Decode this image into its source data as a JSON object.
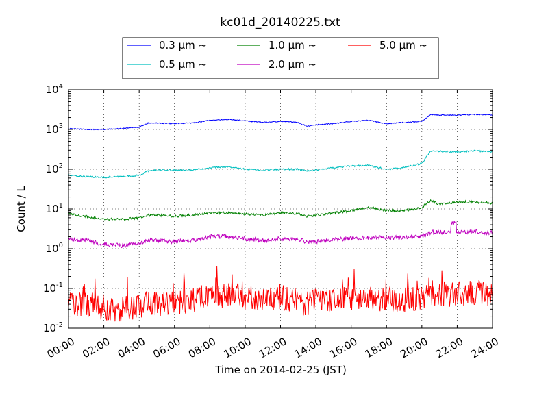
{
  "chart_data": {
    "type": "line",
    "title": "kc01d_20140225.txt",
    "xlabel": "Time on 2014-02-25 (JST)",
    "ylabel": "Count / L",
    "yscale": "log",
    "ylim": [
      0.01,
      10000
    ],
    "xlim": [
      "00:00",
      "24:00"
    ],
    "x_ticks": [
      "00:00",
      "02:00",
      "04:00",
      "06:00",
      "08:00",
      "10:00",
      "12:00",
      "14:00",
      "16:00",
      "18:00",
      "20:00",
      "22:00",
      "24:00"
    ],
    "y_ticks": [
      {
        "base": "10",
        "exp": "-2",
        "value": 0.01
      },
      {
        "base": "10",
        "exp": "-1",
        "value": 0.1
      },
      {
        "base": "10",
        "exp": "0",
        "value": 1
      },
      {
        "base": "10",
        "exp": "1",
        "value": 10
      },
      {
        "base": "10",
        "exp": "2",
        "value": 100
      },
      {
        "base": "10",
        "exp": "3",
        "value": 1000
      },
      {
        "base": "10",
        "exp": "4",
        "value": 10000
      }
    ],
    "grid": true,
    "legend_position": "top-center",
    "x_hours": [
      0,
      1,
      2,
      3,
      4,
      4.5,
      5,
      6,
      7,
      8,
      9,
      10,
      11,
      12,
      13,
      13.5,
      14,
      15,
      16,
      17,
      18,
      19,
      20,
      20.5,
      21,
      22,
      23,
      24
    ],
    "series": [
      {
        "name": "0.3 μm ~",
        "color": "#0000ff",
        "values": [
          1050,
          1000,
          1000,
          1050,
          1150,
          1450,
          1450,
          1400,
          1450,
          1700,
          1800,
          1650,
          1500,
          1600,
          1500,
          1200,
          1300,
          1400,
          1600,
          1700,
          1400,
          1500,
          1600,
          2400,
          2300,
          2300,
          2400,
          2300
        ]
      },
      {
        "name": "0.5 μm ~",
        "color": "#00bfbf",
        "values": [
          70,
          65,
          62,
          65,
          70,
          90,
          95,
          95,
          95,
          110,
          115,
          100,
          95,
          100,
          100,
          90,
          95,
          110,
          120,
          125,
          100,
          110,
          140,
          280,
          280,
          270,
          290,
          270
        ]
      },
      {
        "name": "1.0 μm ~",
        "color": "#008000",
        "values": [
          7.5,
          6.5,
          5.5,
          5.5,
          6,
          7,
          7,
          6.5,
          7,
          8,
          8,
          7.5,
          7,
          8,
          7.5,
          6.5,
          7,
          8,
          9,
          11,
          9,
          9,
          11,
          16,
          13,
          15,
          15,
          14
        ]
      },
      {
        "name": "2.0 μm ~",
        "color": "#bf00bf",
        "values": [
          1.8,
          1.6,
          1.3,
          1.2,
          1.3,
          1.6,
          1.6,
          1.5,
          1.6,
          2.0,
          2.0,
          1.8,
          1.6,
          1.8,
          1.7,
          1.5,
          1.5,
          1.7,
          1.8,
          1.9,
          1.9,
          1.9,
          2.0,
          2.6,
          2.6,
          2.5,
          2.7,
          2.5
        ]
      },
      {
        "name": "5.0 μm ~",
        "color": "#ff0000",
        "values": [
          0.04,
          0.04,
          0.03,
          0.03,
          0.035,
          0.04,
          0.04,
          0.04,
          0.05,
          0.06,
          0.07,
          0.06,
          0.05,
          0.06,
          0.05,
          0.04,
          0.05,
          0.05,
          0.06,
          0.06,
          0.05,
          0.05,
          0.06,
          0.08,
          0.07,
          0.07,
          0.08,
          0.06
        ]
      }
    ]
  }
}
